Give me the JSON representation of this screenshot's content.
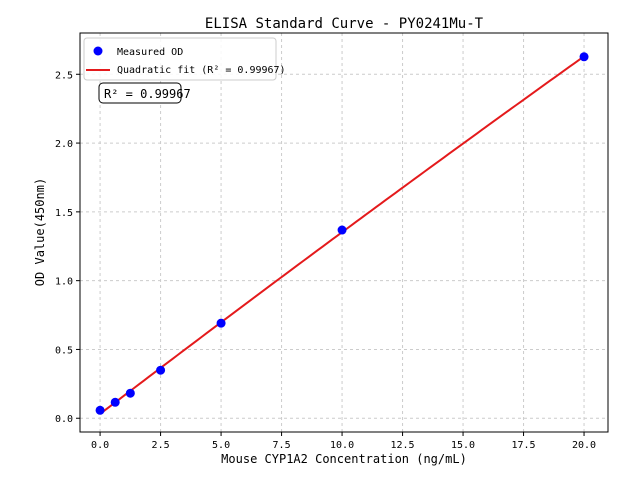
{
  "chart_data": {
    "type": "scatter",
    "title": "ELISA Standard Curve - PY0241Mu-T",
    "xlabel": "Mouse CYP1A2 Concentration (ng/mL)",
    "ylabel": "OD Value(450nm)",
    "xlim": [
      -0.83,
      20.99
    ],
    "ylim": [
      -0.1,
      2.8
    ],
    "xticks": [
      "0.0",
      "2.5",
      "5.0",
      "7.5",
      "10.0",
      "12.5",
      "15.0",
      "17.5",
      "20.0"
    ],
    "yticks": [
      "0.0",
      "0.5",
      "1.0",
      "1.5",
      "2.0",
      "2.5"
    ],
    "grid": true,
    "legend_position": "top-left",
    "series": [
      {
        "name": "Measured OD",
        "kind": "scatter",
        "color": "#0000ff",
        "x": [
          0,
          0.625,
          1.25,
          2.5,
          5,
          10,
          20
        ],
        "y": [
          0.058,
          0.116,
          0.182,
          0.349,
          0.691,
          1.368,
          2.627
        ]
      },
      {
        "name": "Quadratic fit (R² = 0.99967)",
        "kind": "line",
        "color": "#e41a1c"
      }
    ],
    "annotation": "R² = 0.99967"
  }
}
